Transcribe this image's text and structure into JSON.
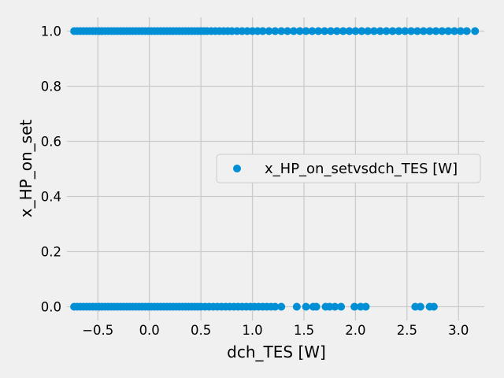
{
  "chart_data": {
    "type": "scatter",
    "title": "",
    "xlabel": "dch_TES [W]",
    "ylabel": "x_HP_on_set",
    "xlim": [
      -0.8,
      3.25
    ],
    "ylim": [
      -0.05,
      1.05
    ],
    "xticks": [
      -0.5,
      0.0,
      0.5,
      1.0,
      1.5,
      2.0,
      2.5,
      3.0
    ],
    "xtick_labels": [
      "−0.5",
      "0.0",
      "0.5",
      "1.0",
      "1.5",
      "2.0",
      "2.5",
      "3.0"
    ],
    "yticks": [
      0.0,
      0.2,
      0.4,
      0.6,
      0.8,
      1.0
    ],
    "ytick_labels": [
      "0.0",
      "0.2",
      "0.4",
      "0.6",
      "0.8",
      "1.0"
    ],
    "grid": true,
    "legend_position": "center-right",
    "marker_color": "#008fd5",
    "series": [
      {
        "name": "x_HP_on_setvsdch_TES [W]",
        "points": [
          {
            "x": -0.73,
            "y": 1
          },
          {
            "x": -0.7,
            "y": 1
          },
          {
            "x": -0.67,
            "y": 1
          },
          {
            "x": -0.64,
            "y": 1
          },
          {
            "x": -0.61,
            "y": 1
          },
          {
            "x": -0.58,
            "y": 1
          },
          {
            "x": -0.55,
            "y": 1
          },
          {
            "x": -0.52,
            "y": 1
          },
          {
            "x": -0.49,
            "y": 1
          },
          {
            "x": -0.46,
            "y": 1
          },
          {
            "x": -0.43,
            "y": 1
          },
          {
            "x": -0.4,
            "y": 1
          },
          {
            "x": -0.37,
            "y": 1
          },
          {
            "x": -0.34,
            "y": 1
          },
          {
            "x": -0.31,
            "y": 1
          },
          {
            "x": -0.28,
            "y": 1
          },
          {
            "x": -0.25,
            "y": 1
          },
          {
            "x": -0.22,
            "y": 1
          },
          {
            "x": -0.19,
            "y": 1
          },
          {
            "x": -0.16,
            "y": 1
          },
          {
            "x": -0.13,
            "y": 1
          },
          {
            "x": -0.1,
            "y": 1
          },
          {
            "x": -0.07,
            "y": 1
          },
          {
            "x": -0.04,
            "y": 1
          },
          {
            "x": -0.01,
            "y": 1
          },
          {
            "x": 0.02,
            "y": 1
          },
          {
            "x": 0.05,
            "y": 1
          },
          {
            "x": 0.08,
            "y": 1
          },
          {
            "x": 0.11,
            "y": 1
          },
          {
            "x": 0.14,
            "y": 1
          },
          {
            "x": 0.17,
            "y": 1
          },
          {
            "x": 0.2,
            "y": 1
          },
          {
            "x": 0.23,
            "y": 1
          },
          {
            "x": 0.26,
            "y": 1
          },
          {
            "x": 0.29,
            "y": 1
          },
          {
            "x": 0.32,
            "y": 1
          },
          {
            "x": 0.35,
            "y": 1
          },
          {
            "x": 0.38,
            "y": 1
          },
          {
            "x": 0.41,
            "y": 1
          },
          {
            "x": 0.44,
            "y": 1
          },
          {
            "x": 0.47,
            "y": 1
          },
          {
            "x": 0.5,
            "y": 1
          },
          {
            "x": 0.53,
            "y": 1
          },
          {
            "x": 0.56,
            "y": 1
          },
          {
            "x": 0.6,
            "y": 1
          },
          {
            "x": 0.64,
            "y": 1
          },
          {
            "x": 0.68,
            "y": 1
          },
          {
            "x": 0.72,
            "y": 1
          },
          {
            "x": 0.76,
            "y": 1
          },
          {
            "x": 0.8,
            "y": 1
          },
          {
            "x": 0.85,
            "y": 1
          },
          {
            "x": 0.9,
            "y": 1
          },
          {
            "x": 0.95,
            "y": 1
          },
          {
            "x": 1.0,
            "y": 1
          },
          {
            "x": 1.05,
            "y": 1
          },
          {
            "x": 1.1,
            "y": 1
          },
          {
            "x": 1.16,
            "y": 1
          },
          {
            "x": 1.22,
            "y": 1
          },
          {
            "x": 1.28,
            "y": 1
          },
          {
            "x": 1.34,
            "y": 1
          },
          {
            "x": 1.4,
            "y": 1
          },
          {
            "x": 1.46,
            "y": 1
          },
          {
            "x": 1.52,
            "y": 1
          },
          {
            "x": 1.58,
            "y": 1
          },
          {
            "x": 1.64,
            "y": 1
          },
          {
            "x": 1.7,
            "y": 1
          },
          {
            "x": 1.76,
            "y": 1
          },
          {
            "x": 1.82,
            "y": 1
          },
          {
            "x": 1.88,
            "y": 1
          },
          {
            "x": 1.94,
            "y": 1
          },
          {
            "x": 2.0,
            "y": 1
          },
          {
            "x": 2.06,
            "y": 1
          },
          {
            "x": 2.12,
            "y": 1
          },
          {
            "x": 2.18,
            "y": 1
          },
          {
            "x": 2.24,
            "y": 1
          },
          {
            "x": 2.3,
            "y": 1
          },
          {
            "x": 2.36,
            "y": 1
          },
          {
            "x": 2.42,
            "y": 1
          },
          {
            "x": 2.48,
            "y": 1
          },
          {
            "x": 2.54,
            "y": 1
          },
          {
            "x": 2.6,
            "y": 1
          },
          {
            "x": 2.66,
            "y": 1
          },
          {
            "x": 2.72,
            "y": 1
          },
          {
            "x": 2.78,
            "y": 1
          },
          {
            "x": 2.84,
            "y": 1
          },
          {
            "x": 2.9,
            "y": 1
          },
          {
            "x": 2.96,
            "y": 1
          },
          {
            "x": 3.02,
            "y": 1
          },
          {
            "x": 3.08,
            "y": 1
          },
          {
            "x": 3.16,
            "y": 1
          },
          {
            "x": -0.73,
            "y": 0
          },
          {
            "x": -0.7,
            "y": 0
          },
          {
            "x": -0.67,
            "y": 0
          },
          {
            "x": -0.64,
            "y": 0
          },
          {
            "x": -0.61,
            "y": 0
          },
          {
            "x": -0.58,
            "y": 0
          },
          {
            "x": -0.55,
            "y": 0
          },
          {
            "x": -0.52,
            "y": 0
          },
          {
            "x": -0.49,
            "y": 0
          },
          {
            "x": -0.46,
            "y": 0
          },
          {
            "x": -0.43,
            "y": 0
          },
          {
            "x": -0.4,
            "y": 0
          },
          {
            "x": -0.37,
            "y": 0
          },
          {
            "x": -0.34,
            "y": 0
          },
          {
            "x": -0.31,
            "y": 0
          },
          {
            "x": -0.28,
            "y": 0
          },
          {
            "x": -0.25,
            "y": 0
          },
          {
            "x": -0.22,
            "y": 0
          },
          {
            "x": -0.19,
            "y": 0
          },
          {
            "x": -0.16,
            "y": 0
          },
          {
            "x": -0.13,
            "y": 0
          },
          {
            "x": -0.1,
            "y": 0
          },
          {
            "x": -0.07,
            "y": 0
          },
          {
            "x": -0.04,
            "y": 0
          },
          {
            "x": -0.01,
            "y": 0
          },
          {
            "x": 0.02,
            "y": 0
          },
          {
            "x": 0.05,
            "y": 0
          },
          {
            "x": 0.08,
            "y": 0
          },
          {
            "x": 0.11,
            "y": 0
          },
          {
            "x": 0.14,
            "y": 0
          },
          {
            "x": 0.17,
            "y": 0
          },
          {
            "x": 0.2,
            "y": 0
          },
          {
            "x": 0.23,
            "y": 0
          },
          {
            "x": 0.26,
            "y": 0
          },
          {
            "x": 0.29,
            "y": 0
          },
          {
            "x": 0.32,
            "y": 0
          },
          {
            "x": 0.35,
            "y": 0
          },
          {
            "x": 0.38,
            "y": 0
          },
          {
            "x": 0.41,
            "y": 0
          },
          {
            "x": 0.44,
            "y": 0
          },
          {
            "x": 0.47,
            "y": 0
          },
          {
            "x": 0.5,
            "y": 0
          },
          {
            "x": 0.54,
            "y": 0
          },
          {
            "x": 0.58,
            "y": 0
          },
          {
            "x": 0.62,
            "y": 0
          },
          {
            "x": 0.66,
            "y": 0
          },
          {
            "x": 0.7,
            "y": 0
          },
          {
            "x": 0.74,
            "y": 0
          },
          {
            "x": 0.78,
            "y": 0
          },
          {
            "x": 0.82,
            "y": 0
          },
          {
            "x": 0.86,
            "y": 0
          },
          {
            "x": 0.9,
            "y": 0
          },
          {
            "x": 0.94,
            "y": 0
          },
          {
            "x": 0.98,
            "y": 0
          },
          {
            "x": 1.02,
            "y": 0
          },
          {
            "x": 1.06,
            "y": 0
          },
          {
            "x": 1.1,
            "y": 0
          },
          {
            "x": 1.14,
            "y": 0
          },
          {
            "x": 1.18,
            "y": 0
          },
          {
            "x": 1.22,
            "y": 0
          },
          {
            "x": 1.28,
            "y": 0
          },
          {
            "x": 1.43,
            "y": 0
          },
          {
            "x": 1.52,
            "y": 0
          },
          {
            "x": 1.59,
            "y": 0
          },
          {
            "x": 1.62,
            "y": 0
          },
          {
            "x": 1.71,
            "y": 0
          },
          {
            "x": 1.75,
            "y": 0
          },
          {
            "x": 1.8,
            "y": 0
          },
          {
            "x": 1.86,
            "y": 0
          },
          {
            "x": 1.99,
            "y": 0
          },
          {
            "x": 2.05,
            "y": 0
          },
          {
            "x": 2.1,
            "y": 0
          },
          {
            "x": 2.58,
            "y": 0
          },
          {
            "x": 2.63,
            "y": 0
          },
          {
            "x": 2.72,
            "y": 0
          },
          {
            "x": 2.76,
            "y": 0
          }
        ]
      }
    ]
  }
}
